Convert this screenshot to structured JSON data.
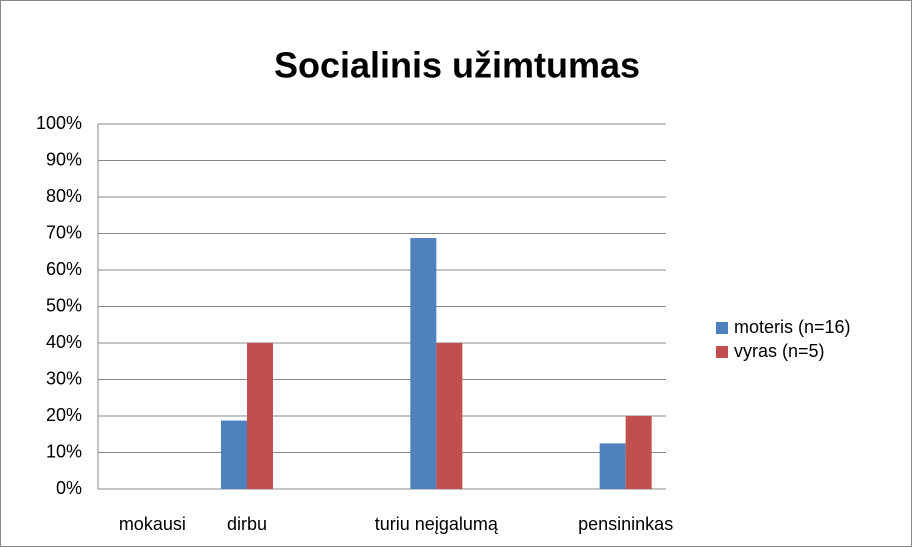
{
  "chart_data": {
    "type": "bar",
    "title": "Socialinis užimtumas",
    "categories": [
      "mokausi",
      "dirbu",
      null,
      "turiu neįgalumą",
      null,
      "pensininkas"
    ],
    "series": [
      {
        "name": "moteris (n=16)",
        "color": "#4f81bd",
        "values": [
          0,
          18.75,
          null,
          68.75,
          null,
          12.5
        ]
      },
      {
        "name": "vyras (n=5)",
        "color": "#c0504d",
        "values": [
          0,
          40,
          null,
          40,
          null,
          20
        ]
      }
    ],
    "ylim": [
      0,
      100
    ],
    "yticks": [
      {
        "value": 0,
        "label": "0%"
      },
      {
        "value": 10,
        "label": "10%"
      },
      {
        "value": 20,
        "label": "20%"
      },
      {
        "value": 30,
        "label": "30%"
      },
      {
        "value": 40,
        "label": "40%"
      },
      {
        "value": 50,
        "label": "50%"
      },
      {
        "value": 60,
        "label": "60%"
      },
      {
        "value": 70,
        "label": "70%"
      },
      {
        "value": 80,
        "label": "80%"
      },
      {
        "value": 90,
        "label": "90%"
      },
      {
        "value": 100,
        "label": "100%"
      }
    ],
    "grid": true,
    "legend": "right"
  }
}
